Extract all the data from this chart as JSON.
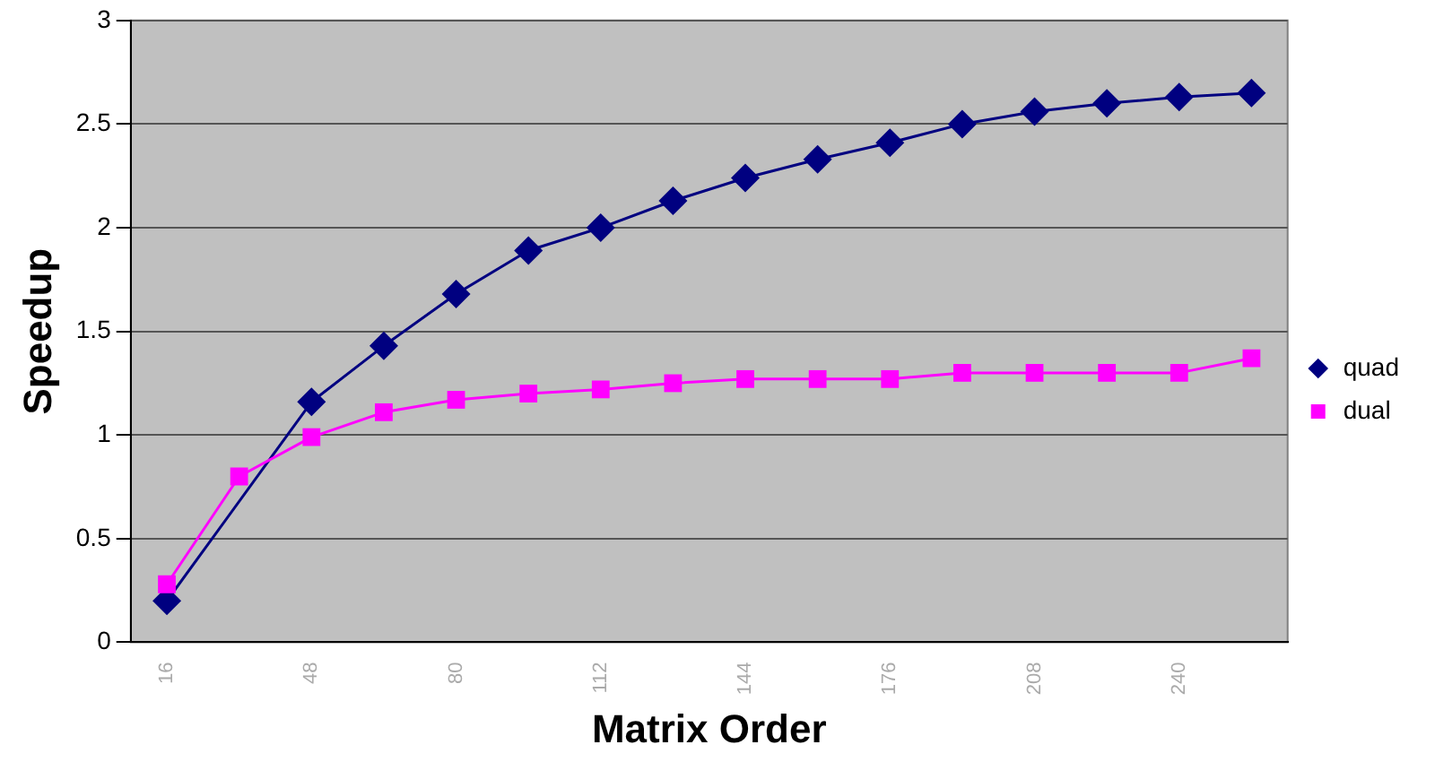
{
  "chart_data": {
    "type": "line",
    "xlabel": "Matrix Order",
    "ylabel": "Speedup",
    "categories": [
      "16",
      null,
      "48",
      null,
      "80",
      null,
      "112",
      null,
      "144",
      null,
      "176",
      null,
      "208",
      null,
      "240",
      null
    ],
    "series": [
      {
        "name": "quad",
        "color": "#000080",
        "marker": "diamond",
        "values": [
          0.2,
          null,
          1.16,
          1.43,
          1.68,
          1.89,
          2.0,
          2.13,
          2.24,
          2.33,
          2.41,
          2.5,
          2.56,
          2.6,
          2.63,
          2.65
        ]
      },
      {
        "name": "dual",
        "color": "#ff00ff",
        "marker": "square",
        "values": [
          0.28,
          0.8,
          0.99,
          1.11,
          1.17,
          1.2,
          1.22,
          1.25,
          1.27,
          1.27,
          1.27,
          1.3,
          1.3,
          1.3,
          1.3,
          1.37
        ]
      }
    ],
    "ylim": [
      0,
      3
    ],
    "yticks": [
      0,
      0.5,
      1,
      1.5,
      2,
      2.5,
      3
    ],
    "grid": "y",
    "legend": "right"
  }
}
